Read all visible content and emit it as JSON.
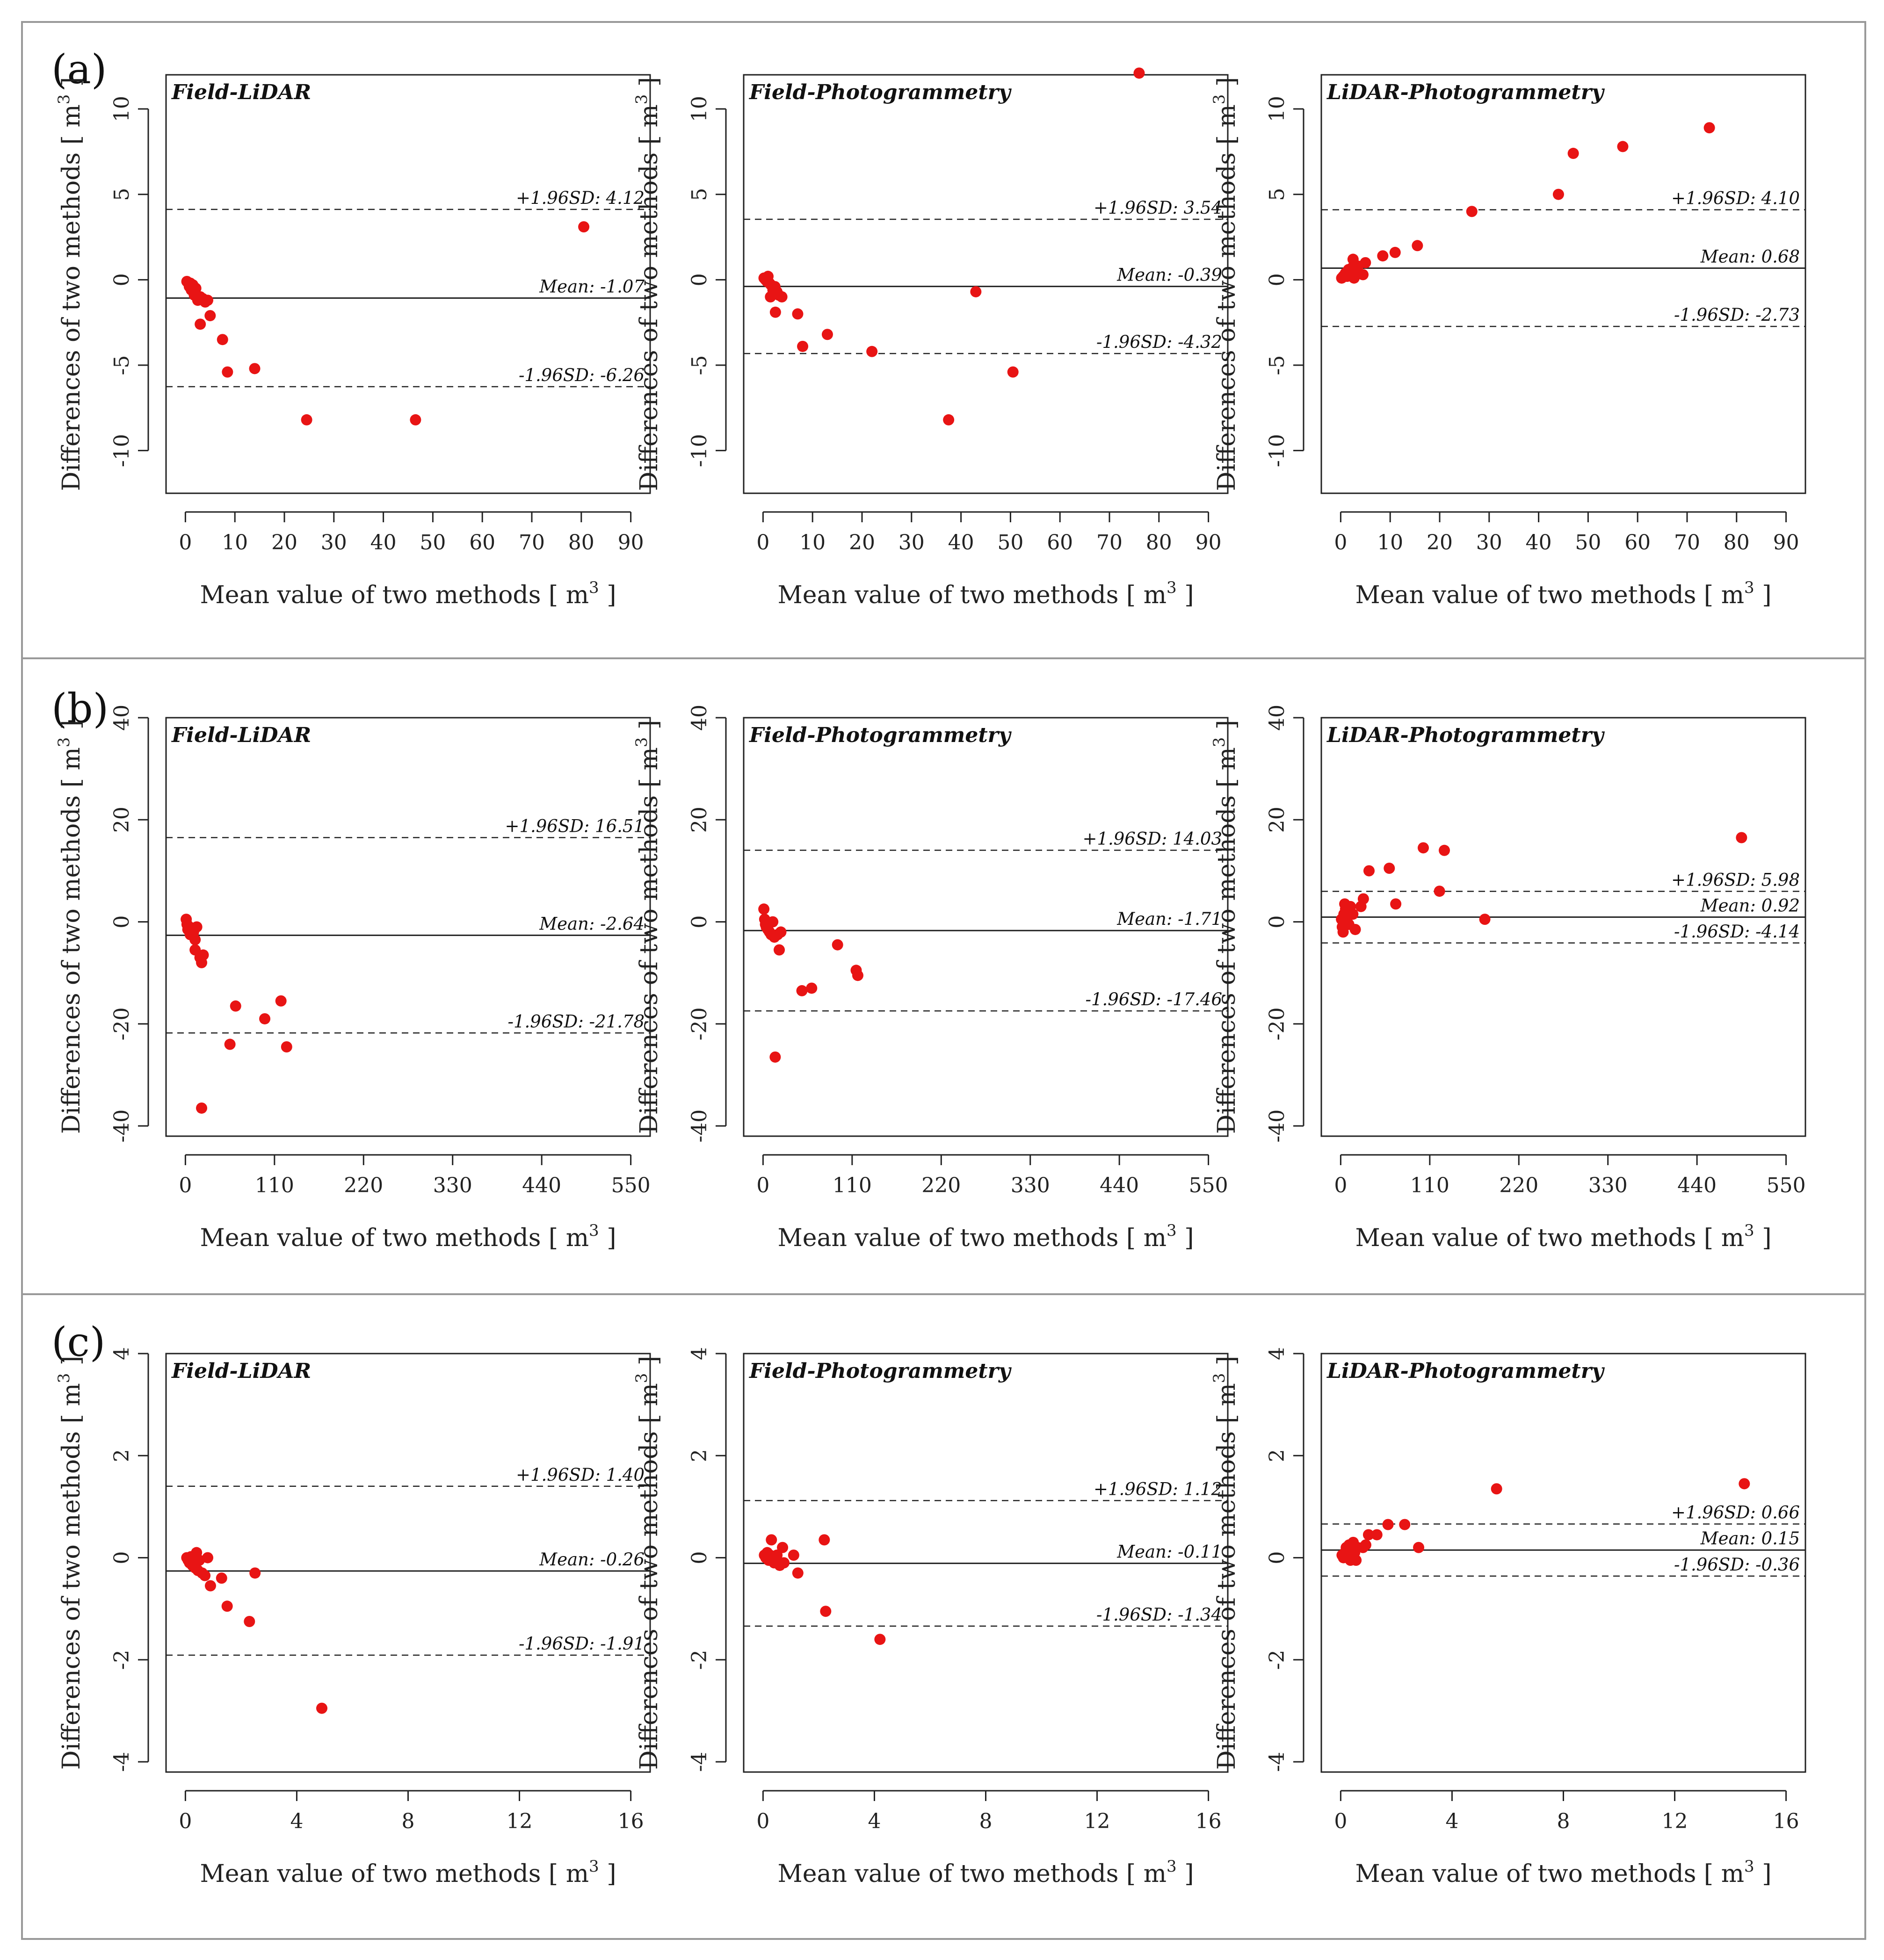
{
  "colors": {
    "point": "#e81414",
    "axis": "#222222",
    "frame": "#999999"
  },
  "x_label": "Mean value of two methods [ m",
  "y_label": "Differences of two methods [ m",
  "unit_sup": "3",
  "unit_close": " ]",
  "rows": [
    {
      "id": "a",
      "label": "(a)"
    },
    {
      "id": "b",
      "label": "(b)"
    },
    {
      "id": "c",
      "label": "(c)"
    }
  ],
  "chart_data": [
    {
      "type": "scatter",
      "row": "a",
      "title": "Field-LiDAR",
      "xlim": [
        0,
        90
      ],
      "ylim": [
        -12.5,
        12
      ],
      "xticks": [
        0,
        10,
        20,
        30,
        40,
        50,
        60,
        70,
        80,
        90
      ],
      "yticks": [
        -10,
        -5,
        0,
        5,
        10
      ],
      "mean": -1.07,
      "upper": 4.12,
      "lower": -6.26,
      "mean_label": "Mean: -1.07",
      "upper_label": "+1.96SD: 4.12",
      "lower_label": "-1.96SD: -6.26",
      "points": [
        [
          0.3,
          -0.1
        ],
        [
          0.6,
          -0.2
        ],
        [
          0.8,
          -0.4
        ],
        [
          1.0,
          -0.2
        ],
        [
          1.2,
          -0.6
        ],
        [
          1.5,
          -0.3
        ],
        [
          1.8,
          -0.9
        ],
        [
          2.1,
          -0.5
        ],
        [
          2.5,
          -1.2
        ],
        [
          3.0,
          -1.0
        ],
        [
          3.5,
          -1.1
        ],
        [
          4.0,
          -1.3
        ],
        [
          4.5,
          -1.2
        ],
        [
          5.0,
          -2.1
        ],
        [
          3.0,
          -2.6
        ],
        [
          7.5,
          -3.5
        ],
        [
          8.5,
          -5.4
        ],
        [
          14.0,
          -5.2
        ],
        [
          24.5,
          -8.2
        ],
        [
          46.5,
          -8.2
        ],
        [
          80.5,
          3.1
        ]
      ]
    },
    {
      "type": "scatter",
      "row": "a",
      "title": "Field-Photogrammetry",
      "xlim": [
        0,
        90
      ],
      "ylim": [
        -12.5,
        12
      ],
      "xticks": [
        0,
        10,
        20,
        30,
        40,
        50,
        60,
        70,
        80,
        90
      ],
      "yticks": [
        -10,
        -5,
        0,
        5,
        10
      ],
      "mean": -0.39,
      "upper": 3.54,
      "lower": -4.32,
      "mean_label": "Mean: -0.39",
      "upper_label": "+1.96SD: 3.54",
      "lower_label": "-1.96SD: -4.32",
      "points": [
        [
          0.2,
          0.1
        ],
        [
          0.5,
          0.0
        ],
        [
          0.8,
          -0.1
        ],
        [
          1.0,
          0.2
        ],
        [
          1.3,
          -0.2
        ],
        [
          1.6,
          -0.3
        ],
        [
          2.0,
          -0.6
        ],
        [
          2.4,
          -0.4
        ],
        [
          2.8,
          -0.7
        ],
        [
          3.2,
          -0.9
        ],
        [
          3.8,
          -1.0
        ],
        [
          1.5,
          -1.0
        ],
        [
          2.5,
          -1.9
        ],
        [
          7.0,
          -2.0
        ],
        [
          8.0,
          -3.9
        ],
        [
          13.0,
          -3.2
        ],
        [
          22.0,
          -4.2
        ],
        [
          37.5,
          -8.2
        ],
        [
          43.0,
          -0.7
        ],
        [
          50.5,
          -5.4
        ],
        [
          76.0,
          12.1
        ]
      ]
    },
    {
      "type": "scatter",
      "row": "a",
      "title": "LiDAR-Photogrammetry",
      "xlim": [
        0,
        90
      ],
      "ylim": [
        -12.5,
        12
      ],
      "xticks": [
        0,
        10,
        20,
        30,
        40,
        50,
        60,
        70,
        80,
        90
      ],
      "yticks": [
        -10,
        -5,
        0,
        5,
        10
      ],
      "mean": 0.68,
      "upper": 4.1,
      "lower": -2.73,
      "mean_label": "Mean: 0.68",
      "upper_label": "+1.96SD: 4.10",
      "lower_label": "-1.96SD: -2.73",
      "points": [
        [
          0.2,
          0.1
        ],
        [
          0.5,
          0.2
        ],
        [
          0.8,
          0.3
        ],
        [
          1.0,
          0.4
        ],
        [
          1.3,
          0.2
        ],
        [
          1.6,
          0.6
        ],
        [
          2.0,
          0.3
        ],
        [
          2.3,
          0.7
        ],
        [
          2.7,
          0.1
        ],
        [
          3.0,
          0.5
        ],
        [
          2.5,
          1.2
        ],
        [
          3.5,
          0.8
        ],
        [
          4.5,
          0.3
        ],
        [
          5.0,
          1.0
        ],
        [
          8.5,
          1.4
        ],
        [
          11.0,
          1.6
        ],
        [
          15.5,
          2.0
        ],
        [
          26.5,
          4.0
        ],
        [
          44.0,
          5.0
        ],
        [
          47.0,
          7.4
        ],
        [
          57.0,
          7.8
        ],
        [
          74.5,
          8.9
        ]
      ]
    },
    {
      "type": "scatter",
      "row": "b",
      "title": "Field-LiDAR",
      "xlim": [
        0,
        550
      ],
      "ylim": [
        -42,
        40
      ],
      "xticks": [
        0,
        110,
        220,
        330,
        440,
        550
      ],
      "yticks": [
        -40,
        -20,
        0,
        20,
        40
      ],
      "mean": -2.64,
      "upper": 16.51,
      "lower": -21.78,
      "mean_label": "Mean: -2.64",
      "upper_label": "+1.96SD: 16.51",
      "lower_label": "-1.96SD: -21.78",
      "points": [
        [
          1,
          0.5
        ],
        [
          2,
          -0.5
        ],
        [
          3,
          -1.5
        ],
        [
          5,
          -1.0
        ],
        [
          6,
          -2.5
        ],
        [
          8,
          -1.5
        ],
        [
          10,
          -2.0
        ],
        [
          12,
          -3.5
        ],
        [
          14,
          -1.0
        ],
        [
          12,
          -5.5
        ],
        [
          18,
          -7.0
        ],
        [
          22,
          -6.5
        ],
        [
          20,
          -8.0
        ],
        [
          55,
          -24.0
        ],
        [
          62,
          -16.5
        ],
        [
          98,
          -19.0
        ],
        [
          118,
          -15.5
        ],
        [
          125,
          -24.5
        ],
        [
          20,
          -36.5
        ]
      ]
    },
    {
      "type": "scatter",
      "row": "b",
      "title": "Field-Photogrammetry",
      "xlim": [
        0,
        550
      ],
      "ylim": [
        -42,
        40
      ],
      "xticks": [
        0,
        110,
        220,
        330,
        440,
        550
      ],
      "yticks": [
        -40,
        -20,
        0,
        20,
        40
      ],
      "mean": -1.71,
      "upper": 14.03,
      "lower": -17.46,
      "mean_label": "Mean: -1.71",
      "upper_label": "+1.96SD: 14.03",
      "lower_label": "-1.96SD: -17.46",
      "points": [
        [
          1,
          2.5
        ],
        [
          2,
          0.5
        ],
        [
          3,
          -0.5
        ],
        [
          4,
          -1.0
        ],
        [
          6,
          -1.5
        ],
        [
          8,
          -2.0
        ],
        [
          10,
          -2.5
        ],
        [
          12,
          0.0
        ],
        [
          14,
          -3.0
        ],
        [
          18,
          -2.5
        ],
        [
          22,
          -2.0
        ],
        [
          20,
          -5.5
        ],
        [
          48,
          -13.5
        ],
        [
          60,
          -13.0
        ],
        [
          92,
          -4.5
        ],
        [
          115,
          -9.5
        ],
        [
          117,
          -10.5
        ],
        [
          15,
          -26.5
        ]
      ]
    },
    {
      "type": "scatter",
      "row": "b",
      "title": "LiDAR-Photogrammetry",
      "xlim": [
        0,
        550
      ],
      "ylim": [
        -42,
        40
      ],
      "xticks": [
        0,
        110,
        220,
        330,
        440,
        550
      ],
      "yticks": [
        -40,
        -20,
        0,
        20,
        40
      ],
      "mean": 0.92,
      "upper": 5.98,
      "lower": -4.14,
      "mean_label": "Mean: 0.92",
      "upper_label": "+1.96SD: 5.98",
      "lower_label": "-1.96SD: -4.14",
      "points": [
        [
          1,
          0.5
        ],
        [
          2,
          -1.0
        ],
        [
          3,
          -2.0
        ],
        [
          4,
          1.5
        ],
        [
          5,
          3.5
        ],
        [
          6,
          2.5
        ],
        [
          8,
          0.0
        ],
        [
          10,
          -0.5
        ],
        [
          12,
          3.0
        ],
        [
          15,
          1.5
        ],
        [
          18,
          -1.5
        ],
        [
          25,
          3.0
        ],
        [
          28,
          4.5
        ],
        [
          35,
          10.0
        ],
        [
          60,
          10.5
        ],
        [
          68,
          3.5
        ],
        [
          102,
          14.5
        ],
        [
          122,
          6.0
        ],
        [
          128,
          14.0
        ],
        [
          178,
          0.5
        ],
        [
          495,
          16.5
        ]
      ]
    },
    {
      "type": "scatter",
      "row": "c",
      "title": "Field-LiDAR",
      "xlim": [
        0,
        16
      ],
      "ylim": [
        -4.2,
        4
      ],
      "xticks": [
        0,
        4,
        8,
        12,
        16
      ],
      "yticks": [
        -4,
        -2,
        0,
        2,
        4
      ],
      "mean": -0.26,
      "upper": 1.4,
      "lower": -1.91,
      "mean_label": "Mean: -0.26",
      "upper_label": "+1.96SD: 1.40",
      "lower_label": "-1.96SD: -1.91",
      "points": [
        [
          0.05,
          0.0
        ],
        [
          0.1,
          -0.05
        ],
        [
          0.15,
          -0.1
        ],
        [
          0.2,
          0.02
        ],
        [
          0.25,
          -0.15
        ],
        [
          0.3,
          -0.05
        ],
        [
          0.35,
          -0.2
        ],
        [
          0.4,
          0.1
        ],
        [
          0.45,
          -0.25
        ],
        [
          0.5,
          -0.05
        ],
        [
          0.6,
          -0.3
        ],
        [
          0.7,
          -0.35
        ],
        [
          0.8,
          0.0
        ],
        [
          0.9,
          -0.55
        ],
        [
          1.3,
          -0.4
        ],
        [
          1.5,
          -0.95
        ],
        [
          2.3,
          -1.25
        ],
        [
          2.5,
          -0.3
        ],
        [
          4.9,
          -2.95
        ]
      ]
    },
    {
      "type": "scatter",
      "row": "c",
      "title": "Field-Photogrammetry",
      "xlim": [
        0,
        16
      ],
      "ylim": [
        -4.2,
        4
      ],
      "xticks": [
        0,
        4,
        8,
        12,
        16
      ],
      "yticks": [
        -4,
        -2,
        0,
        2,
        4
      ],
      "mean": -0.11,
      "upper": 1.12,
      "lower": -1.34,
      "mean_label": "Mean: -0.11",
      "upper_label": "+1.96SD: 1.12",
      "lower_label": "-1.96SD: -1.34",
      "points": [
        [
          0.05,
          0.05
        ],
        [
          0.1,
          0.0
        ],
        [
          0.15,
          0.1
        ],
        [
          0.2,
          -0.05
        ],
        [
          0.25,
          0.05
        ],
        [
          0.3,
          0.35
        ],
        [
          0.35,
          0.0
        ],
        [
          0.4,
          -0.1
        ],
        [
          0.5,
          0.05
        ],
        [
          0.6,
          -0.15
        ],
        [
          0.7,
          0.2
        ],
        [
          0.75,
          -0.1
        ],
        [
          1.1,
          0.05
        ],
        [
          1.25,
          -0.3
        ],
        [
          2.2,
          0.35
        ],
        [
          2.25,
          -1.05
        ],
        [
          4.2,
          -1.6
        ]
      ]
    },
    {
      "type": "scatter",
      "row": "c",
      "title": "LiDAR-Photogrammetry",
      "xlim": [
        0,
        16
      ],
      "ylim": [
        -4.2,
        4
      ],
      "xticks": [
        0,
        4,
        8,
        12,
        16
      ],
      "yticks": [
        -4,
        -2,
        0,
        2,
        4
      ],
      "mean": 0.15,
      "upper": 0.66,
      "lower": -0.36,
      "mean_label": "Mean: 0.15",
      "upper_label": "+1.96SD: 0.66",
      "lower_label": "-1.96SD: -0.36",
      "points": [
        [
          0.05,
          0.05
        ],
        [
          0.1,
          0.0
        ],
        [
          0.15,
          0.1
        ],
        [
          0.2,
          0.2
        ],
        [
          0.25,
          0.05
        ],
        [
          0.3,
          0.25
        ],
        [
          0.35,
          -0.05
        ],
        [
          0.4,
          0.15
        ],
        [
          0.45,
          0.3
        ],
        [
          0.5,
          0.1
        ],
        [
          0.55,
          -0.05
        ],
        [
          0.6,
          0.2
        ],
        [
          0.8,
          0.2
        ],
        [
          0.9,
          0.25
        ],
        [
          1.0,
          0.45
        ],
        [
          1.3,
          0.45
        ],
        [
          1.7,
          0.65
        ],
        [
          2.3,
          0.65
        ],
        [
          2.8,
          0.2
        ],
        [
          5.6,
          1.35
        ],
        [
          14.5,
          1.45
        ]
      ]
    }
  ]
}
